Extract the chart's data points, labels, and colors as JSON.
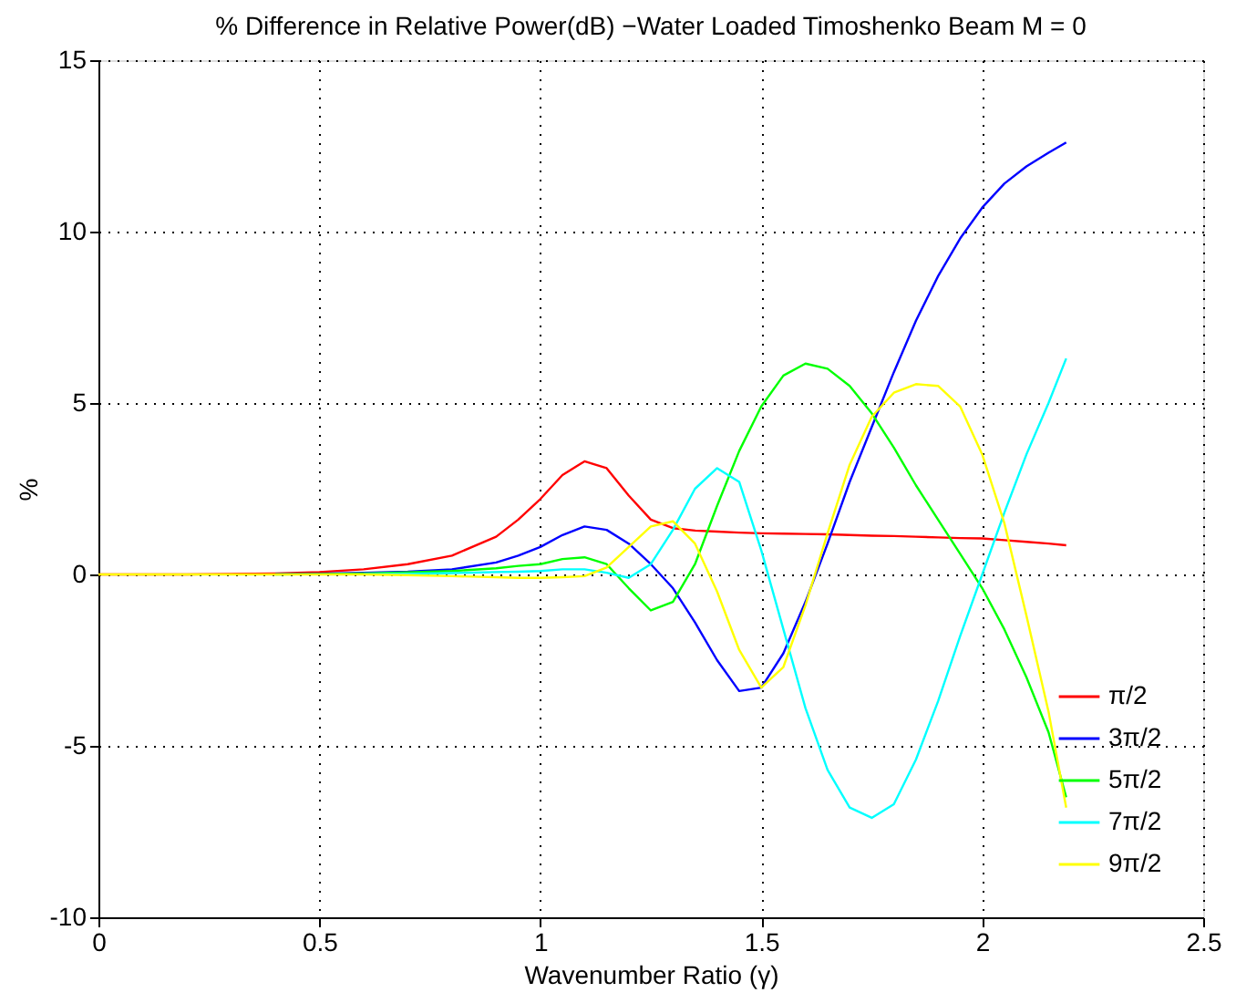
{
  "chart_data": {
    "type": "line",
    "title": "% Difference in Relative Power(dB) −Water Loaded Timoshenko Beam  M = 0",
    "xlabel": "Wavenumber Ratio (γ)",
    "ylabel": "%",
    "x": [
      0,
      0.2,
      0.4,
      0.5,
      0.6,
      0.7,
      0.8,
      0.9,
      0.95,
      1.0,
      1.05,
      1.1,
      1.15,
      1.2,
      1.25,
      1.3,
      1.35,
      1.4,
      1.45,
      1.5,
      1.55,
      1.6,
      1.65,
      1.7,
      1.75,
      1.8,
      1.85,
      1.9,
      1.95,
      2.0,
      2.05,
      2.1,
      2.15,
      2.19
    ],
    "series": [
      {
        "name": "π/2",
        "color": "#ff0000",
        "values": [
          0,
          0,
          0.03,
          0.07,
          0.15,
          0.3,
          0.55,
          1.1,
          1.6,
          2.2,
          2.9,
          3.3,
          3.1,
          2.3,
          1.6,
          1.35,
          1.28,
          1.25,
          1.22,
          1.2,
          1.19,
          1.18,
          1.17,
          1.15,
          1.13,
          1.12,
          1.1,
          1.08,
          1.06,
          1.05,
          1.0,
          0.95,
          0.9,
          0.85
        ]
      },
      {
        "name": "3π/2",
        "color": "#0000ff",
        "values": [
          null,
          null,
          0.01,
          0.02,
          0.05,
          0.08,
          0.15,
          0.35,
          0.55,
          0.8,
          1.15,
          1.4,
          1.3,
          0.9,
          0.3,
          -0.4,
          -1.4,
          -2.5,
          -3.4,
          -3.3,
          -2.3,
          -0.8,
          0.9,
          2.7,
          4.3,
          5.9,
          7.4,
          8.7,
          9.8,
          10.7,
          11.4,
          11.9,
          12.3,
          12.6
        ]
      },
      {
        "name": "5π/2",
        "color": "#00ff00",
        "values": [
          null,
          null,
          0,
          0.01,
          0.03,
          0.06,
          0.1,
          0.18,
          0.25,
          0.3,
          0.45,
          0.5,
          0.3,
          -0.4,
          -1.05,
          -0.8,
          0.3,
          2.0,
          3.6,
          4.9,
          5.8,
          6.15,
          6.0,
          5.5,
          4.7,
          3.7,
          2.6,
          1.6,
          0.6,
          -0.4,
          -1.6,
          -3.0,
          -4.6,
          -6.5
        ]
      },
      {
        "name": "7π/2",
        "color": "#00ffff",
        "values": [
          null,
          null,
          null,
          null,
          0.01,
          0.02,
          0.04,
          0.07,
          0.08,
          0.1,
          0.15,
          0.15,
          0.05,
          -0.1,
          0.3,
          1.3,
          2.5,
          3.1,
          2.7,
          0.7,
          -1.6,
          -3.9,
          -5.7,
          -6.8,
          -7.1,
          -6.7,
          -5.4,
          -3.7,
          -1.8,
          0.0,
          1.8,
          3.5,
          5.0,
          6.3
        ]
      },
      {
        "name": "9π/2",
        "color": "#ffff00",
        "values": [
          0,
          0,
          0,
          0,
          0,
          -0.02,
          -0.05,
          -0.08,
          -0.1,
          -0.1,
          -0.08,
          -0.05,
          0.2,
          0.8,
          1.4,
          1.55,
          0.9,
          -0.5,
          -2.2,
          -3.3,
          -2.7,
          -0.9,
          1.2,
          3.2,
          4.6,
          5.3,
          5.55,
          5.5,
          4.9,
          3.5,
          1.5,
          -1.2,
          -4.0,
          -6.8
        ]
      }
    ],
    "xlim": [
      0,
      2.5
    ],
    "xticks": [
      0,
      0.5,
      1,
      1.5,
      2,
      2.5
    ],
    "ylim": [
      -10,
      15
    ],
    "yticks": [
      -10,
      -5,
      0,
      5,
      10,
      15
    ],
    "grid": true,
    "legend": "bottom right",
    "marker": "none",
    "line_style": "solid"
  }
}
